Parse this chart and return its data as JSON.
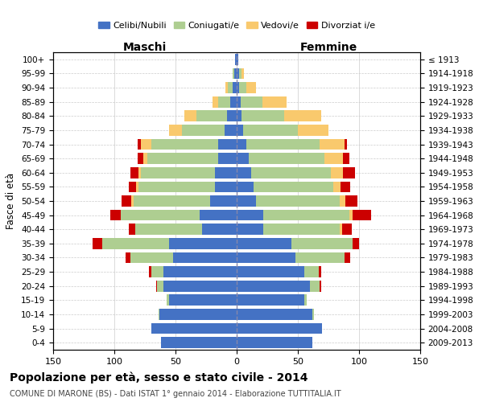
{
  "age_groups": [
    "0-4",
    "5-9",
    "10-14",
    "15-19",
    "20-24",
    "25-29",
    "30-34",
    "35-39",
    "40-44",
    "45-49",
    "50-54",
    "55-59",
    "60-64",
    "65-69",
    "70-74",
    "75-79",
    "80-84",
    "85-89",
    "90-94",
    "95-99",
    "100+"
  ],
  "birth_years": [
    "2009-2013",
    "2004-2008",
    "1999-2003",
    "1994-1998",
    "1989-1993",
    "1984-1988",
    "1979-1983",
    "1974-1978",
    "1969-1973",
    "1964-1968",
    "1959-1963",
    "1954-1958",
    "1949-1953",
    "1944-1948",
    "1939-1943",
    "1934-1938",
    "1929-1933",
    "1924-1928",
    "1919-1923",
    "1914-1918",
    "≤ 1913"
  ],
  "males": {
    "celibe": [
      62,
      70,
      63,
      55,
      60,
      60,
      52,
      55,
      28,
      30,
      22,
      18,
      18,
      15,
      15,
      10,
      8,
      5,
      3,
      2,
      1
    ],
    "coniugato": [
      0,
      0,
      1,
      2,
      5,
      10,
      35,
      55,
      55,
      65,
      62,
      62,
      60,
      58,
      55,
      35,
      25,
      10,
      4,
      1,
      0
    ],
    "vedovo": [
      0,
      0,
      0,
      0,
      0,
      0,
      0,
      0,
      0,
      0,
      2,
      2,
      2,
      3,
      8,
      10,
      10,
      5,
      2,
      0,
      0
    ],
    "divorziato": [
      0,
      0,
      0,
      0,
      1,
      2,
      4,
      8,
      5,
      8,
      8,
      6,
      7,
      5,
      3,
      0,
      0,
      0,
      0,
      0,
      0
    ]
  },
  "females": {
    "nubile": [
      62,
      70,
      62,
      55,
      60,
      55,
      48,
      45,
      22,
      22,
      16,
      14,
      12,
      10,
      8,
      5,
      4,
      3,
      2,
      2,
      1
    ],
    "coniugata": [
      0,
      0,
      1,
      2,
      8,
      12,
      40,
      50,
      62,
      70,
      68,
      65,
      65,
      62,
      60,
      45,
      35,
      18,
      6,
      2,
      0
    ],
    "vedova": [
      0,
      0,
      0,
      0,
      0,
      0,
      0,
      0,
      2,
      3,
      5,
      6,
      10,
      15,
      20,
      25,
      30,
      20,
      8,
      2,
      0
    ],
    "divorziata": [
      0,
      0,
      0,
      0,
      1,
      2,
      5,
      5,
      8,
      15,
      10,
      8,
      10,
      5,
      2,
      0,
      0,
      0,
      0,
      0,
      0
    ]
  },
  "colors": {
    "celibe": "#4472C4",
    "coniugato": "#AECE91",
    "vedovo": "#F9C96D",
    "divorziato": "#CC0000"
  },
  "xlim": 150,
  "title": "Popolazione per età, sesso e stato civile - 2014",
  "subtitle": "COMUNE DI MARONE (BS) - Dati ISTAT 1° gennaio 2014 - Elaborazione TUTTITALIA.IT",
  "ylabel": "Fasce di età",
  "label_maschi": "Maschi",
  "label_femmine": "Femmine",
  "bg_color": "#ffffff",
  "grid_color": "#cccccc",
  "legend_labels": [
    "Celibi/Nubili",
    "Coniugati/e",
    "Vedovi/e",
    "Divorziat i/e"
  ]
}
